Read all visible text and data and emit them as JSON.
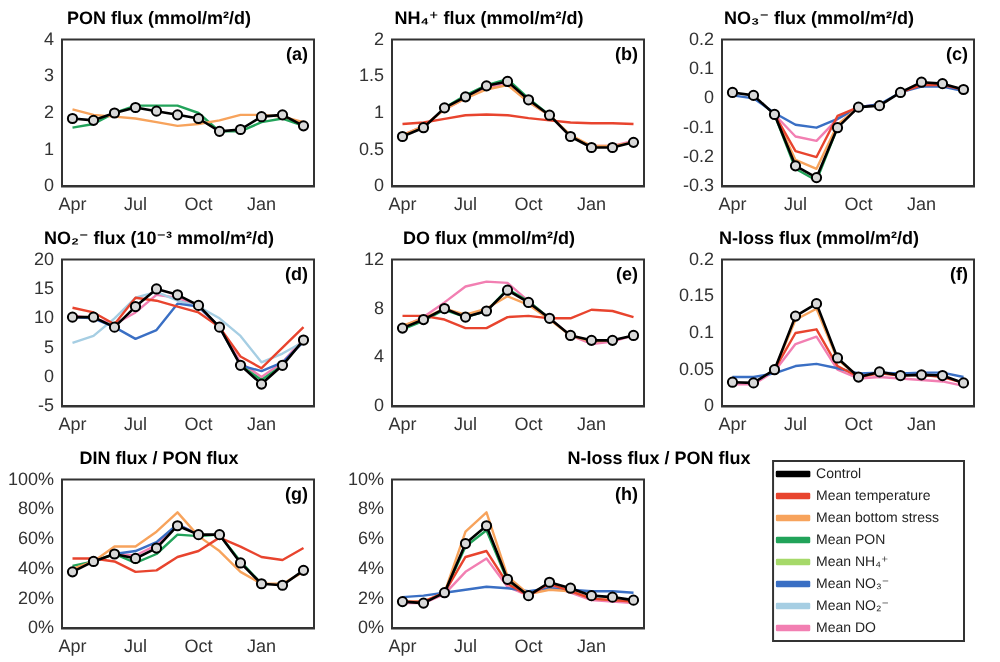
{
  "chart_data": [
    {
      "type": "line",
      "title": "PON flux (mmol/m²/d)",
      "categories": [
        "Apr",
        null,
        null,
        "Jul",
        null,
        null,
        "Oct",
        null,
        null,
        "Jan",
        null,
        null
      ],
      "ylim": [
        0,
        4
      ],
      "yticks": [
        0,
        1,
        2,
        3,
        4
      ],
      "grid": false,
      "legend": false,
      "annotations": [
        "(a)"
      ],
      "series": [
        {
          "color": "#000000",
          "marker": "circle",
          "values": [
            1.85,
            1.8,
            2.0,
            2.15,
            2.05,
            1.95,
            1.85,
            1.5,
            1.55,
            1.9,
            1.95,
            1.65
          ]
        },
        {
          "color": "#f7a35c",
          "marker": "none",
          "values": [
            2.1,
            1.95,
            1.9,
            1.85,
            1.75,
            1.65,
            1.7,
            1.8,
            1.95,
            1.95,
            1.9,
            1.75
          ]
        },
        {
          "color": "#22a35a",
          "marker": "none",
          "values": [
            1.6,
            1.7,
            2.0,
            2.2,
            2.2,
            2.2,
            2.0,
            1.5,
            1.5,
            1.75,
            1.85,
            1.65
          ]
        }
      ]
    },
    {
      "type": "line",
      "title": "NH₄⁺ flux (mmol/m²/d)",
      "categories": [
        "Apr",
        null,
        null,
        "Jul",
        null,
        null,
        "Oct",
        null,
        null,
        "Jan",
        null,
        null
      ],
      "ylim": [
        0,
        2
      ],
      "yticks": [
        0,
        0.5,
        1,
        1.5,
        2
      ],
      "grid": false,
      "legend": false,
      "annotations": [
        "(b)"
      ],
      "series": [
        {
          "color": "#000000",
          "marker": "circle",
          "values": [
            0.68,
            0.8,
            1.07,
            1.22,
            1.37,
            1.43,
            1.18,
            0.97,
            0.68,
            0.53,
            0.53,
            0.6
          ]
        },
        {
          "color": "#e8442e",
          "marker": "none",
          "values": [
            0.85,
            0.87,
            0.92,
            0.97,
            0.98,
            0.97,
            0.93,
            0.9,
            0.87,
            0.86,
            0.86,
            0.85
          ]
        },
        {
          "color": "#f7a35c",
          "marker": "none",
          "values": [
            0.7,
            0.82,
            1.05,
            1.2,
            1.32,
            1.38,
            1.15,
            0.97,
            0.7,
            0.55,
            0.55,
            0.6
          ]
        },
        {
          "color": "#22a35a",
          "marker": "none",
          "values": [
            null,
            null,
            1.07,
            1.24,
            1.38,
            1.46,
            1.2,
            0.97,
            null,
            null,
            null,
            null
          ]
        },
        {
          "color": "#f27fb2",
          "marker": "none",
          "values": [
            0.7,
            0.82,
            1.05,
            1.2,
            1.35,
            1.4,
            1.15,
            0.97,
            0.68,
            0.55,
            0.55,
            0.62
          ]
        }
      ]
    },
    {
      "type": "line",
      "title": "NO₃⁻ flux (mmol/m²/d)",
      "categories": [
        "Apr",
        null,
        null,
        "Jul",
        null,
        null,
        "Oct",
        null,
        null,
        "Jan",
        null,
        null
      ],
      "ylim": [
        -0.3,
        0.2
      ],
      "yticks": [
        -0.3,
        -0.2,
        -0.1,
        0,
        0.1,
        0.2
      ],
      "grid": false,
      "legend": false,
      "annotations": [
        "(c)"
      ],
      "series": [
        {
          "color": "#000000",
          "marker": "circle",
          "values": [
            0.02,
            0.01,
            -0.055,
            -0.23,
            -0.27,
            -0.1,
            -0.03,
            -0.025,
            0.02,
            0.055,
            0.05,
            0.03
          ]
        },
        {
          "color": "#e8442e",
          "marker": "none",
          "values": [
            null,
            null,
            -0.055,
            -0.18,
            -0.2,
            -0.06,
            -0.03,
            null,
            0.02,
            0.045,
            0.045,
            0.03
          ]
        },
        {
          "color": "#f7a35c",
          "marker": "none",
          "values": [
            null,
            null,
            -0.055,
            -0.21,
            -0.24,
            -0.09,
            -0.03,
            null,
            null,
            null,
            null,
            null
          ]
        },
        {
          "color": "#22a35a",
          "marker": "none",
          "values": [
            null,
            null,
            -0.055,
            -0.24,
            -0.28,
            -0.1,
            null,
            null,
            null,
            null,
            null,
            null
          ]
        },
        {
          "color": "#3a6fc4",
          "marker": "none",
          "values": [
            0.01,
            0.0,
            -0.05,
            -0.09,
            -0.1,
            -0.07,
            -0.03,
            -0.02,
            0.02,
            0.04,
            0.04,
            0.025
          ]
        },
        {
          "color": "#f27fb2",
          "marker": "none",
          "values": [
            null,
            null,
            -0.055,
            -0.13,
            -0.145,
            -0.07,
            -0.03,
            -0.02,
            null,
            null,
            null,
            null
          ]
        }
      ]
    },
    {
      "type": "line",
      "title": "NO₂⁻ flux (10⁻³ mmol/m²/d)",
      "categories": [
        "Apr",
        null,
        null,
        "Jul",
        null,
        null,
        "Oct",
        null,
        null,
        "Jan",
        null,
        null
      ],
      "ylim": [
        -5,
        20
      ],
      "yticks": [
        -5,
        0,
        5,
        10,
        15,
        20
      ],
      "grid": false,
      "legend": false,
      "annotations": [
        "(d)"
      ],
      "series": [
        {
          "color": "#000000",
          "marker": "circle",
          "values": [
            10.2,
            10.2,
            8.5,
            12,
            15,
            14,
            12.2,
            8.5,
            2,
            -1.2,
            2,
            6.3
          ]
        },
        {
          "color": "#e8442e",
          "marker": "none",
          "values": [
            11.8,
            11,
            9,
            13.5,
            13,
            12,
            11,
            8.5,
            3.5,
            1.5,
            5,
            8.5
          ]
        },
        {
          "color": "#22a35a",
          "marker": "none",
          "values": [
            null,
            null,
            null,
            null,
            null,
            null,
            null,
            null,
            2,
            -0.5,
            2,
            null
          ]
        },
        {
          "color": "#3a6fc4",
          "marker": "none",
          "values": [
            10.2,
            10,
            8.5,
            6.5,
            8,
            12.5,
            12,
            8.5,
            2,
            1,
            2.5,
            6
          ]
        },
        {
          "color": "#a6cee3",
          "marker": "none",
          "values": [
            5.8,
            7,
            10,
            13.5,
            14.5,
            13,
            12,
            10,
            7,
            2.5,
            4,
            6
          ]
        },
        {
          "color": "#f27fb2",
          "marker": "none",
          "values": [
            10.5,
            10,
            9,
            11,
            14,
            13.5,
            12,
            8.5,
            2.5,
            0,
            2.5,
            6.5
          ]
        }
      ]
    },
    {
      "type": "line",
      "title": "DO flux (mmol/m²/d)",
      "categories": [
        "Apr",
        null,
        null,
        "Jul",
        null,
        null,
        "Oct",
        null,
        null,
        "Jan",
        null,
        null
      ],
      "ylim": [
        0,
        12
      ],
      "yticks": [
        0,
        4,
        8,
        12
      ],
      "grid": false,
      "legend": false,
      "annotations": [
        "(e)"
      ],
      "series": [
        {
          "color": "#000000",
          "marker": "circle",
          "values": [
            6.4,
            7.1,
            8,
            7.3,
            7.8,
            9.5,
            8.5,
            7.2,
            5.8,
            5.4,
            5.4,
            5.8
          ]
        },
        {
          "color": "#e8442e",
          "marker": "none",
          "values": [
            7.4,
            7.4,
            7.1,
            6.4,
            6.4,
            7.3,
            7.4,
            7.2,
            7.2,
            7.9,
            7.8,
            7.3
          ]
        },
        {
          "color": "#f7a35c",
          "marker": "none",
          "values": [
            6.6,
            7.2,
            8,
            7.5,
            8,
            9,
            8.3,
            7.1,
            5.8,
            5.3,
            5.4,
            null
          ]
        },
        {
          "color": "#22a35a",
          "marker": "none",
          "values": [
            6.3,
            7,
            7.9,
            7.3,
            7.8,
            9.6,
            8.6,
            7.2,
            null,
            null,
            null,
            null
          ]
        },
        {
          "color": "#f27fb2",
          "marker": "none",
          "values": [
            6.5,
            7.3,
            8.5,
            9.8,
            10.2,
            10.1,
            8.6,
            7.2,
            5.8,
            5.1,
            5.3,
            5.8
          ]
        }
      ]
    },
    {
      "type": "line",
      "title": "N-loss flux (mmol/m²/d)",
      "categories": [
        "Apr",
        null,
        null,
        "Jul",
        null,
        null,
        "Oct",
        null,
        null,
        "Jan",
        null,
        null
      ],
      "ylim": [
        0,
        0.2
      ],
      "yticks": [
        0,
        0.05,
        0.1,
        0.15,
        0.2
      ],
      "grid": false,
      "legend": false,
      "annotations": [
        "(f)"
      ],
      "series": [
        {
          "color": "#000000",
          "marker": "circle",
          "values": [
            0.033,
            0.032,
            0.05,
            0.123,
            0.14,
            0.066,
            0.04,
            0.047,
            0.042,
            0.043,
            0.042,
            0.032
          ]
        },
        {
          "color": "#e8442e",
          "marker": "none",
          "values": [
            null,
            null,
            0.05,
            0.1,
            0.105,
            0.055,
            0.04,
            0.045,
            0.042,
            0.043,
            0.04,
            0.032
          ]
        },
        {
          "color": "#f7a35c",
          "marker": "none",
          "values": [
            null,
            null,
            0.05,
            0.118,
            0.133,
            0.064,
            0.04,
            0.046,
            0.042,
            null,
            null,
            null
          ]
        },
        {
          "color": "#3a6fc4",
          "marker": "none",
          "values": [
            0.04,
            0.04,
            0.045,
            0.055,
            0.058,
            0.052,
            0.045,
            0.046,
            0.045,
            0.046,
            0.046,
            0.04
          ]
        },
        {
          "color": "#f27fb2",
          "marker": "none",
          "values": [
            0.03,
            0.03,
            0.048,
            0.085,
            0.095,
            0.05,
            0.038,
            0.04,
            0.038,
            0.036,
            0.034,
            0.028
          ]
        }
      ]
    },
    {
      "type": "line",
      "title": "DIN flux / PON flux",
      "categories": [
        "Apr",
        null,
        null,
        "Jul",
        null,
        null,
        "Oct",
        null,
        null,
        "Jan",
        null,
        null
      ],
      "ylim": [
        0,
        100
      ],
      "yticks": [
        {
          "value": 0,
          "label": "0%"
        },
        {
          "value": 20,
          "label": "20%"
        },
        {
          "value": 40,
          "label": "40%"
        },
        {
          "value": 60,
          "label": "60%"
        },
        {
          "value": 80,
          "label": "80%"
        },
        {
          "value": 100,
          "label": "100%"
        }
      ],
      "grid": false,
      "legend": false,
      "annotations": [
        "(g)"
      ],
      "series": [
        {
          "color": "#000000",
          "marker": "circle",
          "values": [
            38,
            45,
            50,
            47,
            54,
            69,
            63,
            63,
            44,
            30,
            29,
            39
          ]
        },
        {
          "color": "#e8442e",
          "marker": "none",
          "values": [
            47,
            47,
            45,
            38,
            39,
            48,
            52,
            61,
            55,
            48,
            46,
            54
          ]
        },
        {
          "color": "#f7a35c",
          "marker": "none",
          "values": [
            40,
            45,
            55,
            55,
            65,
            78,
            62,
            52,
            38,
            30,
            30,
            38
          ]
        },
        {
          "color": "#22a35a",
          "marker": "none",
          "values": [
            42,
            45,
            50,
            44,
            50,
            63,
            62,
            63,
            45,
            30,
            null,
            null
          ]
        },
        {
          "color": "#3a6fc4",
          "marker": "none",
          "values": [
            null,
            null,
            50,
            52,
            58,
            70,
            63,
            null,
            null,
            null,
            null,
            null
          ]
        },
        {
          "color": "#f27fb2",
          "marker": "none",
          "values": [
            null,
            null,
            50,
            49,
            56,
            70,
            63,
            null,
            null,
            null,
            null,
            null
          ]
        }
      ]
    },
    {
      "type": "line",
      "title": "N-loss flux / PON flux",
      "categories": [
        "Apr",
        null,
        null,
        "Jul",
        null,
        null,
        "Oct",
        null,
        null,
        "Jan",
        null,
        null
      ],
      "ylim": [
        0,
        10
      ],
      "yticks": [
        {
          "value": 0,
          "label": "0%"
        },
        {
          "value": 2,
          "label": "2%"
        },
        {
          "value": 4,
          "label": "4%"
        },
        {
          "value": 6,
          "label": "6%"
        },
        {
          "value": 8,
          "label": "8%"
        },
        {
          "value": 10,
          "label": "10%"
        }
      ],
      "grid": false,
      "legend": "right",
      "annotations": [
        "(h)"
      ],
      "series": [
        {
          "name": "Control",
          "color": "#000000",
          "marker": "circle",
          "values": [
            1.8,
            1.7,
            2.4,
            5.7,
            6.9,
            3.3,
            2.2,
            3.1,
            2.7,
            2.2,
            2.1,
            1.9
          ]
        },
        {
          "name": "Mean temperature",
          "color": "#e8442e",
          "marker": "none",
          "values": [
            1.8,
            1.8,
            2.4,
            4.8,
            5.2,
            3.0,
            2.2,
            3.0,
            2.5,
            2.0,
            1.9,
            1.8
          ]
        },
        {
          "name": "Mean bottom stress",
          "color": "#f7a35c",
          "marker": "none",
          "values": [
            1.8,
            1.8,
            2.4,
            6.5,
            7.8,
            3.5,
            2.3,
            2.6,
            2.5,
            2.0,
            1.9,
            1.8
          ]
        },
        {
          "name": "Mean PON",
          "color": "#22a35a",
          "marker": "none",
          "values": [
            null,
            null,
            2.4,
            5.5,
            6.6,
            3.2,
            2.2,
            null,
            null,
            null,
            null,
            null
          ]
        },
        {
          "name": "Mean NH₄⁺",
          "color": "#a6d96a",
          "marker": "none",
          "values": [
            null,
            null,
            null,
            null,
            null,
            null,
            null,
            null,
            null,
            null,
            null,
            null
          ]
        },
        {
          "name": "Mean NO₃⁻",
          "color": "#3a6fc4",
          "marker": "none",
          "values": [
            2.1,
            2.2,
            2.4,
            2.6,
            2.8,
            2.7,
            2.5,
            2.7,
            2.6,
            2.5,
            2.5,
            2.4
          ]
        },
        {
          "name": "Mean NO₂⁻",
          "color": "#a6cee3",
          "marker": "none",
          "values": [
            null,
            null,
            null,
            null,
            null,
            null,
            null,
            null,
            null,
            null,
            null,
            null
          ]
        },
        {
          "name": "Mean DO",
          "color": "#f27fb2",
          "marker": "none",
          "values": [
            1.7,
            1.7,
            2.3,
            3.8,
            4.7,
            2.8,
            2.2,
            2.9,
            2.4,
            1.9,
            1.8,
            1.7
          ]
        }
      ]
    }
  ]
}
